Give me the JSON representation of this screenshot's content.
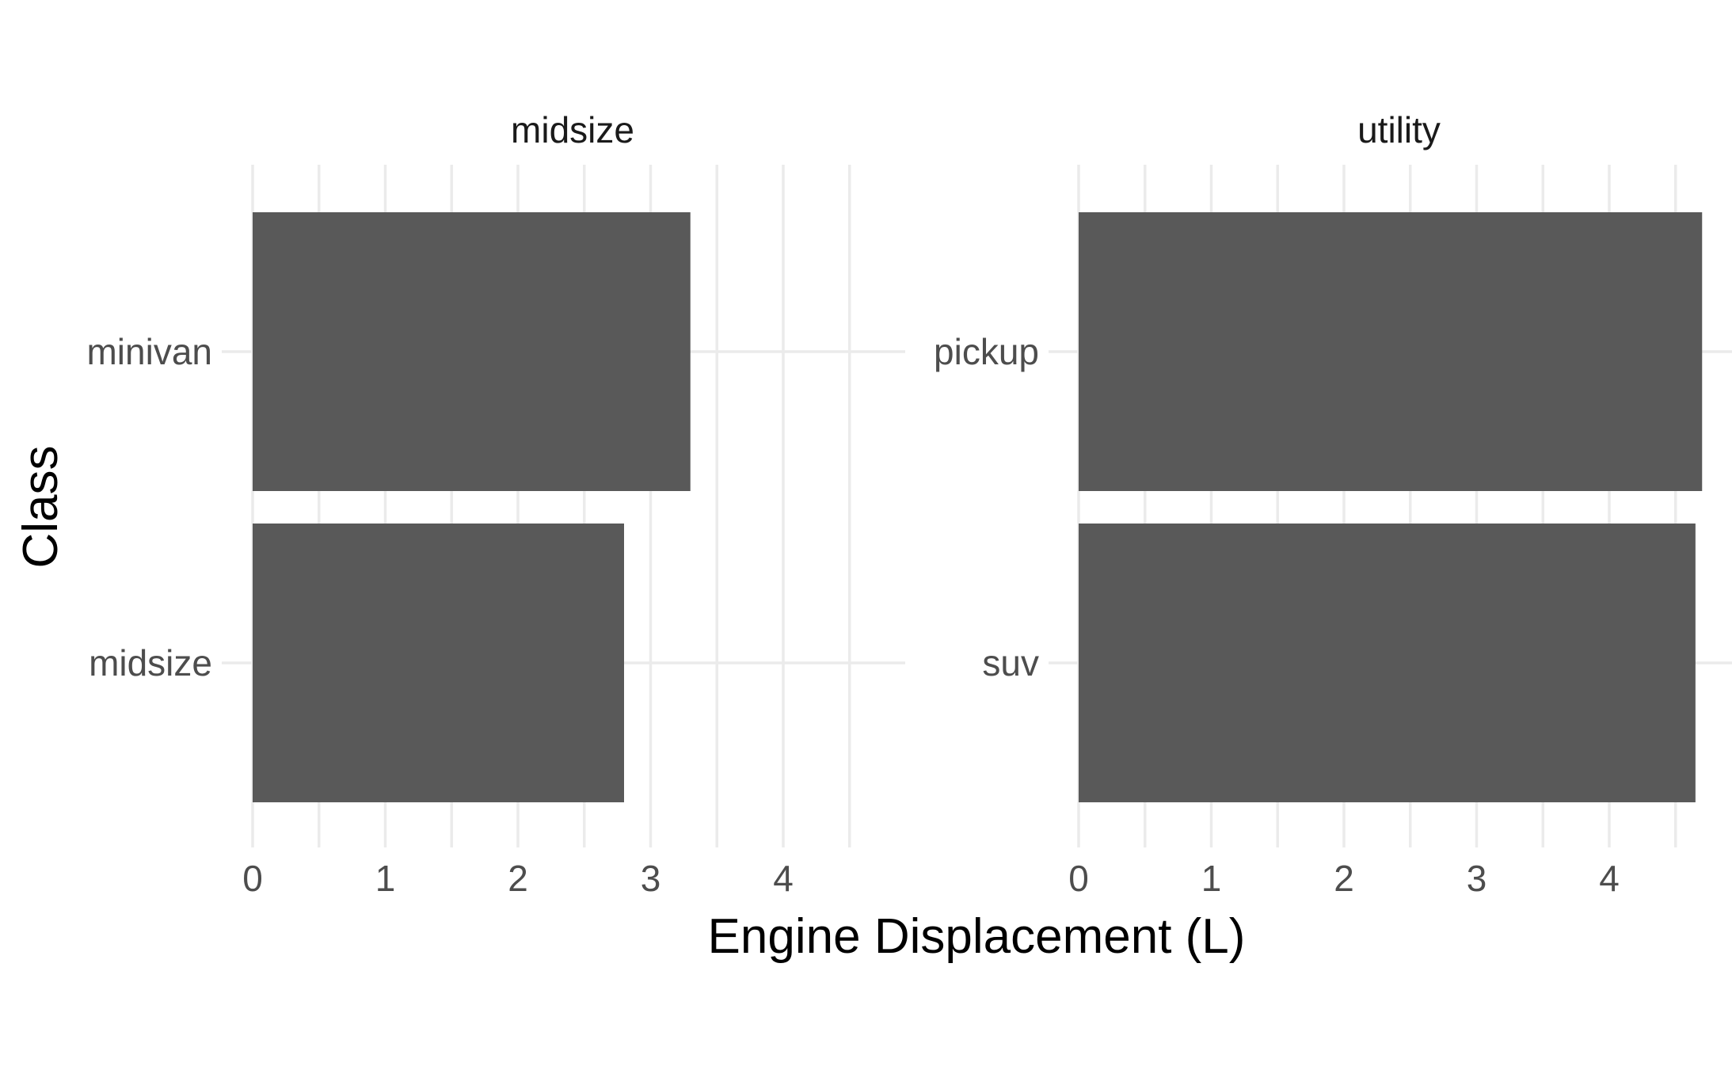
{
  "chart_data": {
    "type": "bar",
    "orientation": "horizontal",
    "xlabel": "Engine Displacement (L)",
    "ylabel": "Class",
    "grid": true,
    "facets": [
      {
        "label": "midsize",
        "categories": [
          "minivan",
          "midsize"
        ],
        "values": [
          3.3,
          2.8
        ],
        "xlim": [
          0,
          4.9
        ],
        "xticks": [
          0,
          1,
          2,
          3,
          4
        ]
      },
      {
        "label": "utility",
        "categories": [
          "pickup",
          "suv"
        ],
        "values": [
          4.7,
          4.65
        ],
        "xlim": [
          0,
          4.9
        ],
        "xticks": [
          0,
          1,
          2,
          3,
          4
        ]
      }
    ]
  }
}
